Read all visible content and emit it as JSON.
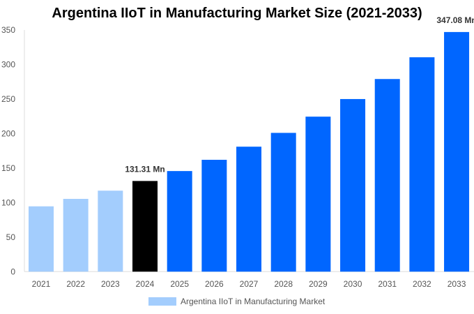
{
  "chart_data": {
    "type": "bar",
    "title": "Argentina IIoT in Manufacturing Market Size (2021-2033)",
    "categories": [
      "2021",
      "2022",
      "2023",
      "2024",
      "2025",
      "2026",
      "2027",
      "2028",
      "2029",
      "2030",
      "2031",
      "2032",
      "2033"
    ],
    "series": [
      {
        "name": "Argentina IIoT in Manufacturing Market",
        "values": [
          94.6,
          105.4,
          117.3,
          131.31,
          145.7,
          162,
          181,
          201,
          224.5,
          250,
          279,
          310.5,
          347.08
        ]
      }
    ],
    "bar_colors": [
      "#a3cdfd",
      "#a3cdfd",
      "#a3cdfd",
      "#000000",
      "#0066ff",
      "#0066ff",
      "#0066ff",
      "#0066ff",
      "#0066ff",
      "#0066ff",
      "#0066ff",
      "#0066ff",
      "#0066ff"
    ],
    "data_labels": [
      {
        "category": "2024",
        "text": "131.31 Mn"
      },
      {
        "category": "2033",
        "text": "347.08 Mn"
      }
    ],
    "ylim": [
      0,
      350
    ],
    "yticks": [
      0,
      50,
      100,
      150,
      200,
      250,
      300,
      350
    ],
    "grid": false,
    "legend_position": "bottom",
    "legend_color": "#a3cdfd"
  }
}
